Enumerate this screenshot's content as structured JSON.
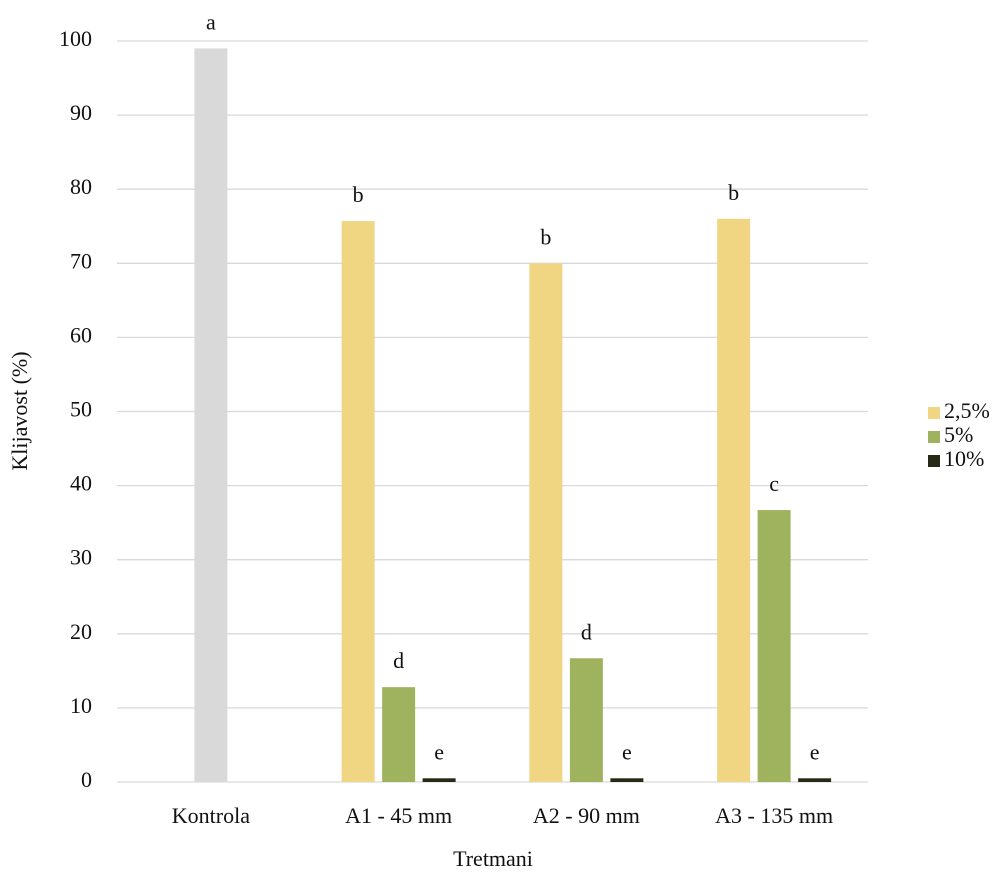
{
  "chart_data": {
    "type": "bar",
    "x_label": "Tretmani",
    "y_label": "Klijavost (%)",
    "categories": [
      "Kontrola",
      "A1 - 45 mm",
      "A2 - 90 mm",
      "A3 - 135 mm"
    ],
    "series": [
      {
        "color": "#d9d9d9",
        "values": [
          99,
          null,
          null,
          null
        ],
        "labels": [
          "a",
          null,
          null,
          null
        ]
      },
      {
        "name": "2,5%",
        "color": "#f0d682",
        "values": [
          null,
          75.7,
          70,
          76
        ],
        "labels": [
          null,
          "b",
          "b",
          "b"
        ]
      },
      {
        "name": "5%",
        "color": "#9fb35f",
        "values": [
          null,
          12.8,
          16.7,
          36.7
        ],
        "labels": [
          null,
          "d",
          "d",
          "c"
        ]
      },
      {
        "name": "10%",
        "color": "#262a14",
        "values": [
          null,
          0.5,
          0.5,
          0.5
        ],
        "labels": [
          null,
          "e",
          "e",
          "e"
        ]
      }
    ],
    "ylim": [
      0,
      100
    ],
    "yticks": [
      0,
      10,
      20,
      30,
      40,
      50,
      60,
      70,
      80,
      90,
      100
    ],
    "grid": true,
    "legend": "right"
  }
}
